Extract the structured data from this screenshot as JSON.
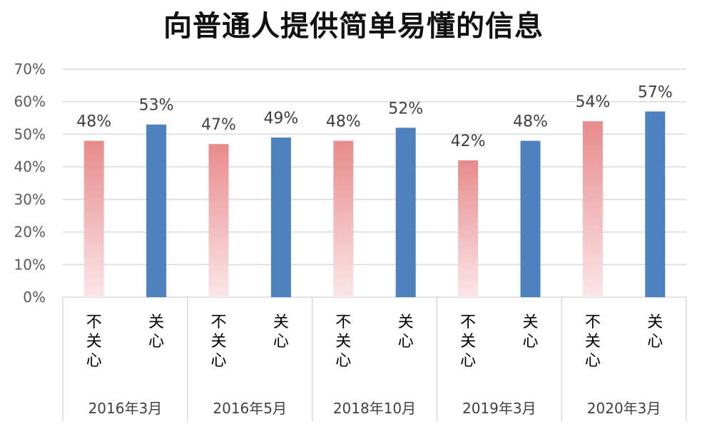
{
  "chart_data": {
    "type": "bar",
    "title": "向普通人提供简单易懂的信息",
    "xlabel": "",
    "ylabel": "",
    "ylim": [
      0,
      70
    ],
    "yticks": [
      "0%",
      "10%",
      "20%",
      "30%",
      "40%",
      "50%",
      "60%",
      "70%"
    ],
    "ytick_values": [
      0,
      10,
      20,
      30,
      40,
      50,
      60,
      70
    ],
    "grid": true,
    "legend": "none",
    "groups": [
      "2016年3月",
      "2016年5月",
      "2018年10月",
      "2019年3月",
      "2020年3月"
    ],
    "series": [
      {
        "name": "不关心",
        "values": [
          48,
          47,
          48,
          42,
          54
        ],
        "value_labels": [
          "48%",
          "47%",
          "48%",
          "42%",
          "54%"
        ]
      },
      {
        "name": "关心",
        "values": [
          53,
          49,
          52,
          48,
          57
        ],
        "value_labels": [
          "53%",
          "49%",
          "52%",
          "48%",
          "57%"
        ]
      }
    ],
    "colors": {
      "不关心_top": "#e88b8b",
      "不关心_bottom": "#fbe6e9",
      "关心": "#4e81bd"
    }
  }
}
